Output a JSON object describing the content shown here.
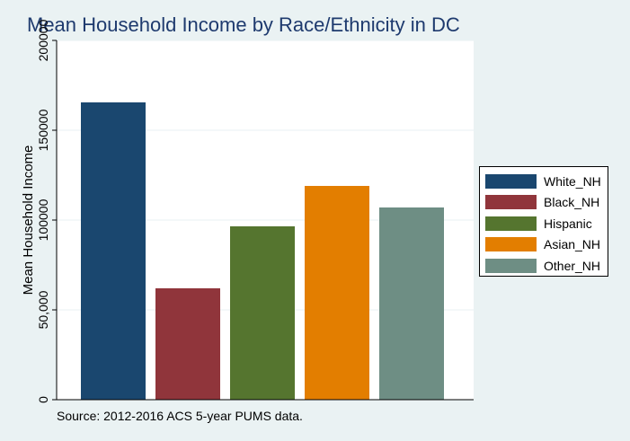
{
  "chart_data": {
    "type": "bar",
    "title": "Mean Household Income by Race/Ethnicity in DC",
    "ylabel": "Mean Household Income",
    "xlabel": "",
    "ylim": [
      0,
      200000
    ],
    "yticks": [
      0,
      50000,
      100000,
      150000,
      200000
    ],
    "ytick_labels": [
      "0",
      "50,000",
      "100000",
      "150000",
      "200000"
    ],
    "categories": [
      "White_NH",
      "Black_NH",
      "Hispanic",
      "Asian_NH",
      "Other_NH"
    ],
    "values": [
      165500,
      62000,
      96500,
      119000,
      107000
    ],
    "colors": [
      "#1a476f",
      "#90353b",
      "#55752f",
      "#e37e00",
      "#6e8e84"
    ],
    "grid": true,
    "legend_position": "right",
    "note": "Source: 2012-2016 ACS 5-year PUMS data."
  }
}
